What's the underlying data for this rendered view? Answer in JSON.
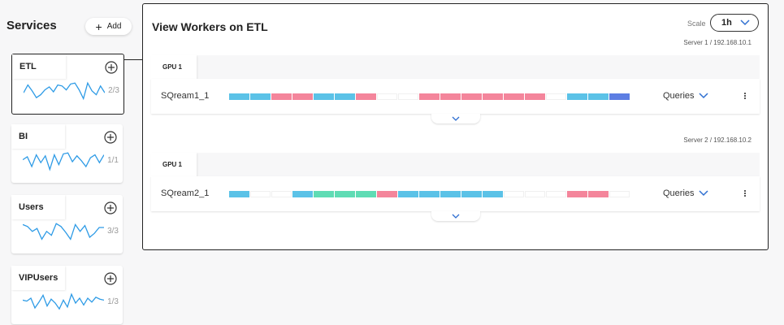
{
  "sidebar": {
    "title": "Services",
    "add_label": "Add",
    "services": [
      {
        "name": "ETL",
        "count": "2/3",
        "selected": true,
        "spark": [
          0.45,
          0.85,
          0.55,
          0.2,
          0.35,
          0.6,
          0.75,
          0.5,
          0.85,
          0.8,
          0.6,
          0.9,
          0.95,
          0.6,
          0.15,
          0.95,
          0.55,
          0.35,
          0.8,
          0.45
        ]
      },
      {
        "name": "BI",
        "count": "1/1",
        "selected": false,
        "spark": [
          0.6,
          0.75,
          0.25,
          0.85,
          0.45,
          0.8,
          0.1,
          0.85,
          0.35,
          0.9,
          0.95,
          0.5,
          0.8,
          0.55,
          0.25,
          0.7,
          0.85,
          0.45,
          0.85
        ]
      },
      {
        "name": "Users",
        "count": "3/3",
        "selected": false,
        "spark": [
          0.9,
          0.8,
          0.55,
          0.7,
          0.15,
          0.55,
          0.35,
          0.95,
          0.8,
          0.5,
          0.15,
          0.9,
          0.55,
          0.85,
          0.25,
          0.45,
          0.75,
          0.75
        ]
      },
      {
        "name": "VIPUsers",
        "count": "1/3",
        "selected": false,
        "spark": [
          0.65,
          0.6,
          0.75,
          0.25,
          0.55,
          0.9,
          0.35,
          0.7,
          0.5,
          0.2,
          0.65,
          0.3,
          0.95,
          0.5,
          0.75,
          0.4,
          0.75,
          0.55,
          0.8,
          0.7,
          0.65
        ]
      }
    ]
  },
  "panel": {
    "title": "View Workers on ETL",
    "scale_label": "Scale",
    "scale_value": "1h",
    "servers": [
      {
        "label": "Server 1 / 192.168.10.1",
        "gpu": "GPU 1",
        "worker": "SQream1_1",
        "queries_label": "Queries",
        "segments": [
          {
            "color": "#5bc2e7",
            "w": 26
          },
          {
            "color": "#5bc2e7",
            "w": 26
          },
          {
            "color": "#f4859b",
            "w": 26
          },
          {
            "color": "#f4859b",
            "w": 26
          },
          {
            "color": "#5bc2e7",
            "w": 26
          },
          {
            "color": "#5bc2e7",
            "w": 26
          },
          {
            "color": "#f4859b",
            "w": 26
          },
          {
            "color": "#ffffff",
            "w": 26
          },
          {
            "color": "#ffffff",
            "w": 26
          },
          {
            "color": "#f4859b",
            "w": 26
          },
          {
            "color": "#f4859b",
            "w": 26
          },
          {
            "color": "#f4859b",
            "w": 26
          },
          {
            "color": "#f4859b",
            "w": 26
          },
          {
            "color": "#f4859b",
            "w": 26
          },
          {
            "color": "#f4859b",
            "w": 26
          },
          {
            "color": "#ffffff",
            "w": 26
          },
          {
            "color": "#5bc2e7",
            "w": 26
          },
          {
            "color": "#5bc2e7",
            "w": 26
          },
          {
            "color": "#5d7ee3",
            "w": 26
          }
        ]
      },
      {
        "label": "Server 2 / 192.168.10.2",
        "gpu": "GPU 1",
        "worker": "SQream2_1",
        "queries_label": "Queries",
        "segments": [
          {
            "color": "#5bc2e7",
            "w": 26
          },
          {
            "color": "#ffffff",
            "w": 26
          },
          {
            "color": "#ffffff",
            "w": 26
          },
          {
            "color": "#5bc2e7",
            "w": 26
          },
          {
            "color": "#5fdcb4",
            "w": 26
          },
          {
            "color": "#5fdcb4",
            "w": 26
          },
          {
            "color": "#5fdcb4",
            "w": 26
          },
          {
            "color": "#f4859b",
            "w": 26
          },
          {
            "color": "#5bc2e7",
            "w": 26
          },
          {
            "color": "#5bc2e7",
            "w": 26
          },
          {
            "color": "#5bc2e7",
            "w": 26
          },
          {
            "color": "#5bc2e7",
            "w": 26
          },
          {
            "color": "#5bc2e7",
            "w": 26
          },
          {
            "color": "#ffffff",
            "w": 26
          },
          {
            "color": "#ffffff",
            "w": 26
          },
          {
            "color": "#ffffff",
            "w": 26
          },
          {
            "color": "#f4859b",
            "w": 26
          },
          {
            "color": "#f4859b",
            "w": 26
          },
          {
            "color": "#ffffff",
            "w": 26
          }
        ]
      }
    ]
  },
  "colors": {
    "spark_line": "#2e9be6",
    "accent_blue": "#2f6fd1"
  }
}
